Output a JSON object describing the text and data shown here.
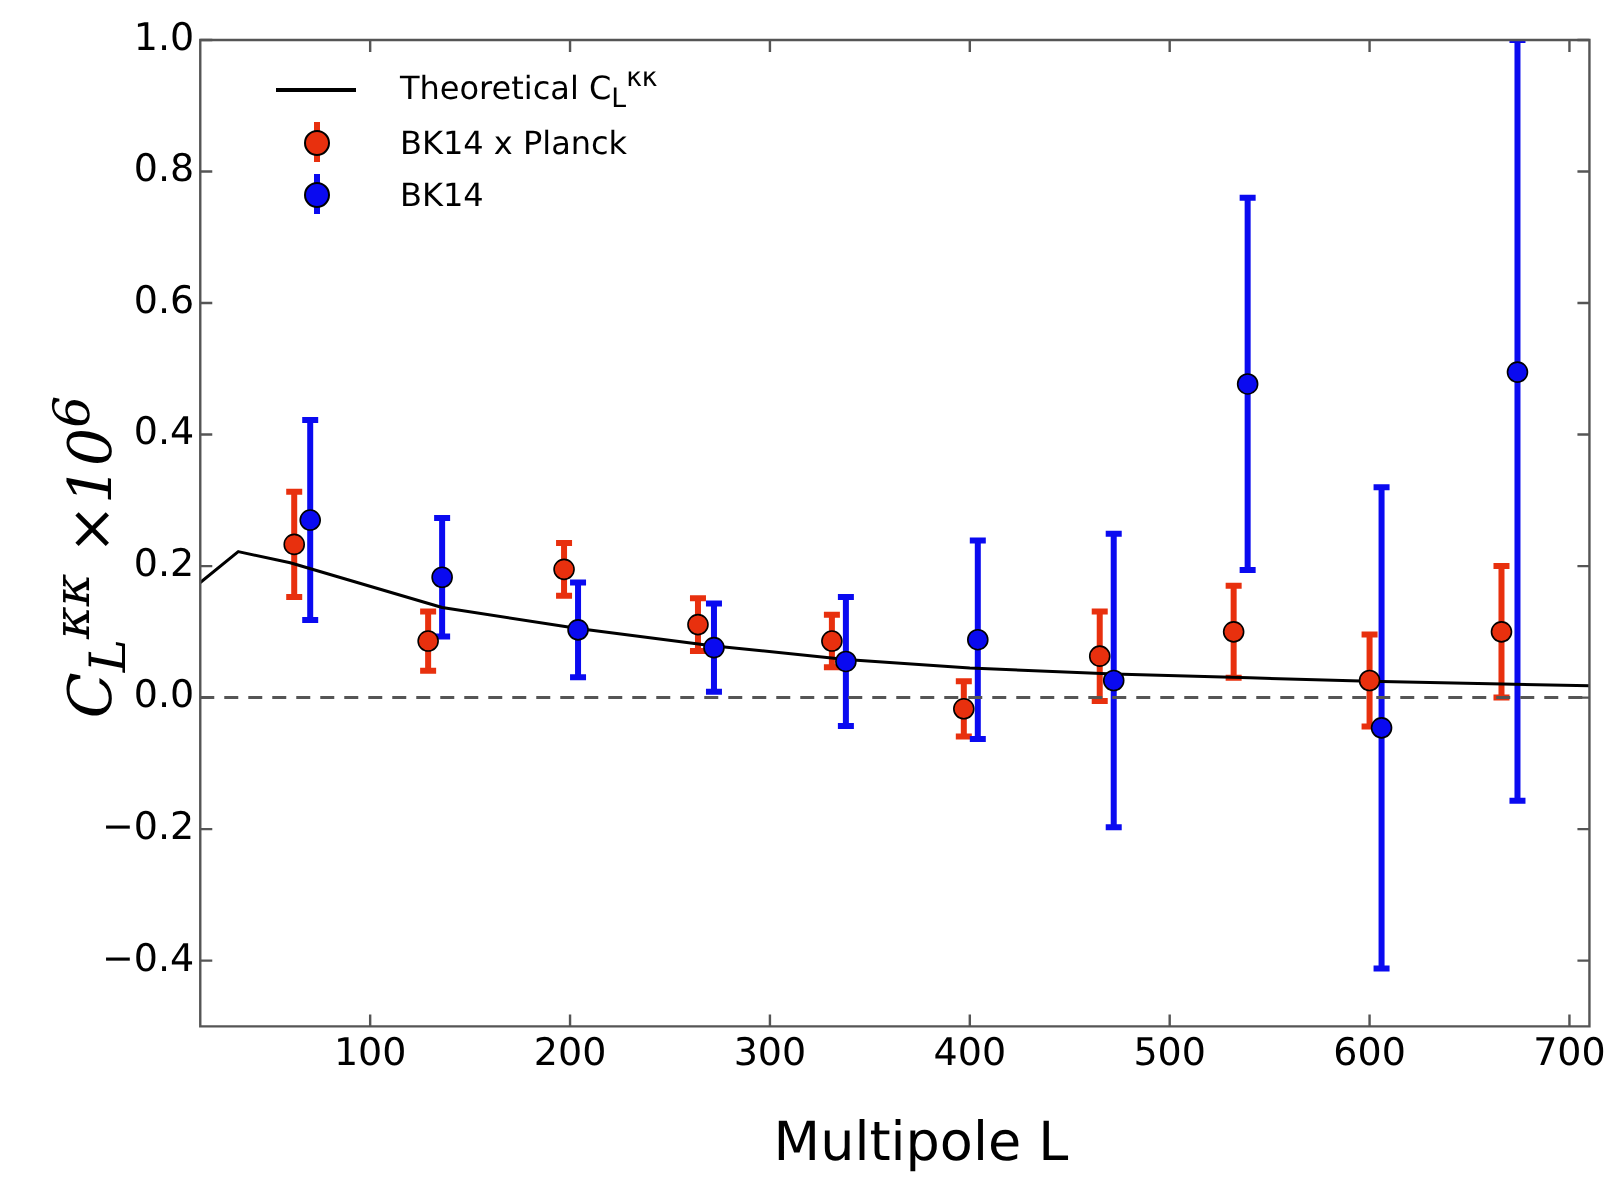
{
  "chart_data": {
    "type": "scatter",
    "xlabel": "Multipole L",
    "ylabel": "C$_{L}$$^{κκ}$ ×10$^{6}$",
    "xlim": [
      15,
      710
    ],
    "xticks": [
      100,
      200,
      300,
      400,
      500,
      600,
      700
    ],
    "ylim": [
      -0.5,
      1.0
    ],
    "yticks": [
      {
        "value": -0.4,
        "label": "−0.4"
      },
      {
        "value": -0.2,
        "label": "−0.2"
      },
      {
        "value": 0,
        "label": "0.0"
      },
      {
        "value": 0.2,
        "label": "0.2"
      },
      {
        "value": 0.4,
        "label": "0.4"
      },
      {
        "value": 0.6,
        "label": "0.6"
      },
      {
        "value": 0.8,
        "label": "0.8"
      },
      {
        "value": 1.0,
        "label": "1.0"
      }
    ],
    "grid": false,
    "legend": "top left",
    "marker": "circle",
    "ref_lines": [
      {
        "axis": "y",
        "value": 0,
        "color": "#555555",
        "line_style": "dashed"
      }
    ],
    "series": [
      {
        "name": "Theoretical C$_{L}$$^{κκ}$",
        "type": "line",
        "color": "#000000",
        "marker": "none",
        "x": [
          15,
          34,
          60,
          88,
          136,
          204,
          271,
          338,
          400,
          472,
          540,
          600,
          710
        ],
        "values": [
          0.175,
          0.222,
          0.205,
          0.18,
          0.137,
          0.105,
          0.079,
          0.058,
          0.045,
          0.036,
          0.03,
          0.025,
          0.018
        ]
      },
      {
        "name": "BK14 x Planck",
        "color": "#e8300e",
        "x": [
          62,
          129,
          197,
          264,
          331,
          397,
          465,
          532,
          600,
          666
        ],
        "values": [
          0.233,
          0.086,
          0.195,
          0.111,
          0.086,
          -0.017,
          0.063,
          0.1,
          0.026,
          0.1
        ],
        "errors": [
          0.08,
          0.045,
          0.04,
          0.04,
          0.04,
          0.042,
          0.068,
          0.07,
          0.07,
          0.1
        ]
      },
      {
        "name": "BK14",
        "color": "#0a0af0",
        "x": [
          70,
          136,
          204,
          272,
          338,
          404,
          472,
          539,
          606,
          674
        ],
        "values": [
          0.27,
          0.183,
          0.103,
          0.076,
          0.055,
          0.088,
          0.026,
          0.477,
          -0.046,
          0.495
        ],
        "errors": [
          0.152,
          0.09,
          0.072,
          0.067,
          0.098,
          0.151,
          0.223,
          0.283,
          0.366,
          [
            -0.157,
            1.0
          ]
        ]
      }
    ]
  }
}
